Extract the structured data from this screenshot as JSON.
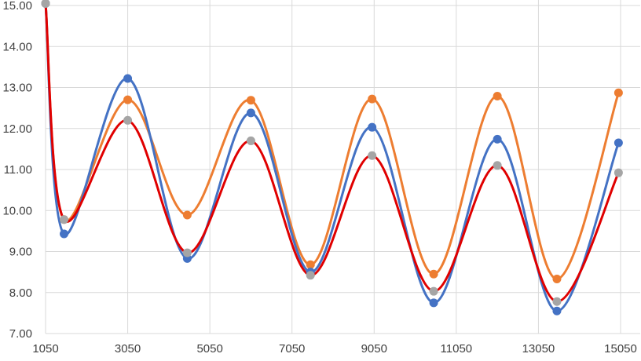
{
  "chart_data": {
    "type": "line",
    "title": "",
    "xlabel": "",
    "ylabel": "",
    "xlim": [
      1050,
      15050
    ],
    "ylim": [
      7.0,
      15.0
    ],
    "x_ticks": [
      1050,
      3050,
      5050,
      7050,
      9050,
      11050,
      13050,
      15050
    ],
    "x_tick_labels": [
      "1050",
      "3050",
      "5050",
      "7050",
      "9050",
      "11050",
      "13050",
      "15050"
    ],
    "y_ticks": [
      7,
      8,
      9,
      10,
      11,
      12,
      13,
      14,
      15
    ],
    "y_tick_labels": [
      "7.00",
      "8.00",
      "9.00",
      "10.00",
      "11.00",
      "12.00",
      "13.00",
      "14.00",
      "15.00"
    ],
    "grid": true,
    "legend": "none",
    "x": [
      1050,
      1500,
      3050,
      4500,
      6050,
      7500,
      9000,
      10500,
      12050,
      13500,
      15000
    ],
    "series": [
      {
        "color": "#4472C4",
        "marker_color": "#4472C4",
        "values": [
          15.05,
          9.43,
          13.22,
          8.83,
          12.38,
          8.5,
          12.03,
          7.75,
          11.74,
          7.55,
          11.65
        ]
      },
      {
        "color": "#ED7D31",
        "marker_color": "#ED7D31",
        "values": [
          15.05,
          9.78,
          12.7,
          9.89,
          12.69,
          8.68,
          12.72,
          8.45,
          12.79,
          8.33,
          12.87
        ]
      },
      {
        "color": "#E00000",
        "marker_color": "#A5A5A5",
        "values": [
          15.05,
          9.78,
          12.2,
          8.97,
          11.7,
          8.42,
          11.34,
          8.03,
          11.1,
          7.78,
          10.92
        ]
      }
    ]
  }
}
